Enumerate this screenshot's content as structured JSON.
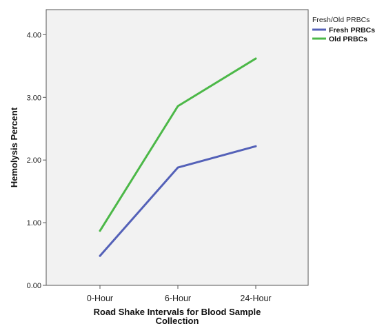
{
  "chart_data": {
    "type": "line",
    "categories": [
      "0-Hour",
      "6-Hour",
      "24-Hour"
    ],
    "series": [
      {
        "name": "Fresh PRBCs",
        "values": [
          0.47,
          1.88,
          2.22
        ],
        "color": "#5461b8"
      },
      {
        "name": "Old PRBCs",
        "values": [
          0.87,
          2.86,
          3.62
        ],
        "color": "#4cb848"
      }
    ],
    "xlabel_line1": "Road Shake Intervals for Blood Sample",
    "xlabel_line2": "Collection",
    "ylabel": "Hemolysis Percent",
    "ylim": [
      0,
      4.4
    ],
    "yticks": [
      "0.00",
      "1.00",
      "2.00",
      "3.00",
      "4.00"
    ],
    "legend_title": "Fresh/Old PRBCs",
    "legend_position": "top-right",
    "grid": false,
    "plot_background": "#f2f2f2"
  }
}
